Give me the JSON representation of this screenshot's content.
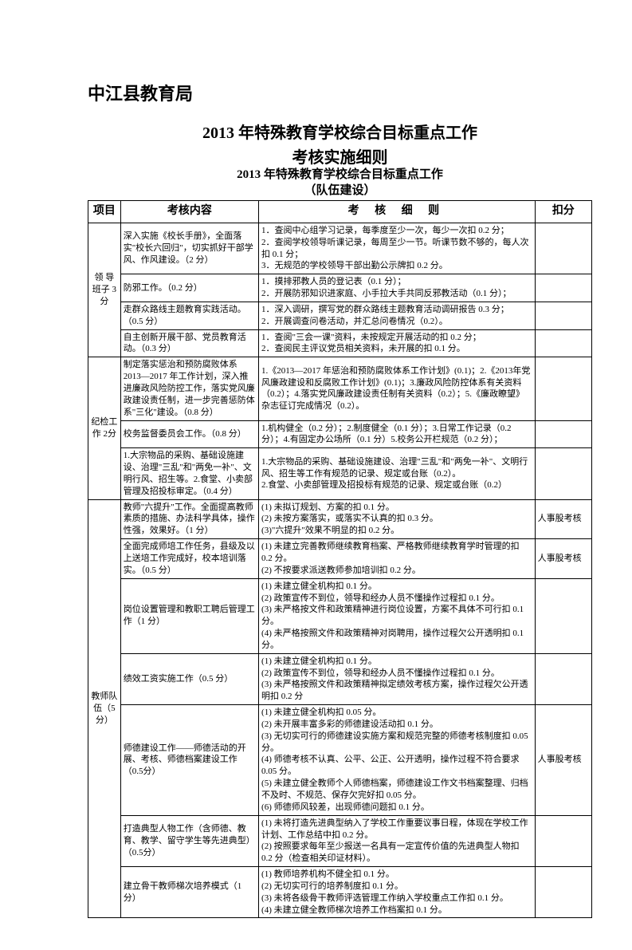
{
  "org_title": "中江县教育局",
  "doc_title_1": "2013 年特殊教育学校综合目标重点工作",
  "doc_title_2": "考核实施细则",
  "sub_title_1": "2013 年特殊教育学校综合目标重点工作",
  "sub_title_2": "（队伍建设）",
  "headers": {
    "project": "项目",
    "content": "考核内容",
    "rule": "考 核 细 则",
    "deduct": "扣分"
  },
  "sections": [
    {
      "project": "领 导班子 3分",
      "rows": [
        {
          "content": "深入实施《校长手册》，全面落实\"校长六回归\"，切实抓好干部学风、作风建设。（2 分）",
          "rule": "1．查阅中心组学习记录，每季度至少一次，每少一次扣 0.2 分；\n2．查阅学校领导听课记录，每周至少一节。听课节数不够的，每人次扣 0.1 分；\n3．无规范的学校领导干部出勤公示牌扣 0.2 分。",
          "deduct": ""
        },
        {
          "content": "防邪工作。（0.2 分）",
          "rule": "1．摸排邪教人员的登记表（0.1 分）；\n2．开展防邪知识进家庭、小手拉大手共同反邪教活动（0.1 分）；",
          "deduct": ""
        },
        {
          "content": "走群众路线主题教育实践活动。（0.5 分）",
          "rule": "1．深入调研，撰写党的群众路线主题教育活动调研报告 0.3 分；\n2．开展调查问卷活动，并汇总问卷情况（0.2）。",
          "deduct": ""
        },
        {
          "content": "自主创新开展干部、党员教育活动。（0.3 分）",
          "rule": "1．查阅\"三会一课\"资料，未按规定开展活动的扣 0.2 分；\n2．查阅民主评议党员相关资料，未开展的扣 0.1 分。",
          "deduct": ""
        }
      ]
    },
    {
      "project": "纪检工作 2分",
      "rows": [
        {
          "content": "制定落实惩治和预防腐败体系 2013—2017 年工作计划，深入推进廉政风险防控工作，落实党风廉政建设责任制，进一步完善惩防体系\"三化\"建设。（0.8 分）",
          "rule": "1.《2013—2017 年惩治和预防腐败体系工作计划》(0.1)；2.《2013年党风廉政建设和反腐败工作计划》(0.1)；3.廉政风险防控体系有关资料（0.2）；4.落实党风廉政建设责任制有关资料（0.2）；5.《廉政瞭望》杂志征订完成情况（0.2）。",
          "deduct": ""
        },
        {
          "content": "校务监督委员会工作。（0.8 分）",
          "rule": "1.机构健全（0.2 分）；2.制度健全（0.1 分）；3.日常工作记录（0.2分）；4.有固定办公场所（0.1 分）5.校务公开栏规范（0.2 分）；",
          "deduct": ""
        },
        {
          "content": "1.大宗物品的采购、基础设施建设、治理\"三乱\"和\"两免一补\"、文明行风、招生等。2.食堂、小卖部管理及招投标审定。（0.4 分）",
          "rule": "1.大宗物品的采购、基础设施建设、治理\"三乱\"和\"两免一补\"、文明行风、招生等工作有规范的记录、规定或台账（0.2）。\n2.食堂、小卖部管理及招投标有规范的记录、规定或台账（0.2）",
          "deduct": ""
        }
      ]
    },
    {
      "project": "教师队伍（5分）",
      "rows": [
        {
          "content": "教师\"六提升\"工作。全面提高教师素质的措施、办法科学具体，操作性强，效果好。（1 分）",
          "rule": "(1) 未拟订规划、方案的扣 0.1 分。\n(2) 未按方案落实，或落实不认真的扣 0.3 分。\n(3)\"六提升\"效果不明显的扣 0.2 分。",
          "deduct": "人事股考核"
        },
        {
          "content": "全面完成师培工作任务，县级及以上送培工作完成好，校本培训落实。（0.5 分）",
          "rule": "(1) 未建立完善教师继续教育档案、严格教师继续教育学时管理的扣 0.2 分。\n(2) 不按要求派送教师参加培训扣 0.2 分。",
          "deduct": "人事股考核"
        },
        {
          "content": "岗位设置管理和教职工聘后管理工作（1 分）",
          "rule": "(1) 未建立健全机构扣 0.1 分。\n(2) 政策宣传不到位，领导和经办人员不懂操作过程扣 0.1 分。\n(3) 未严格按文件和政策精神进行岗位设置，方案不具体不可行扣 0.1 分。\n(4) 未严格按照文件和政策精神对岗聘用，操作过程欠公开透明扣 0.1 分。",
          "deduct": ""
        },
        {
          "content": "绩效工资实施工作（0.5 分）",
          "rule": "(1) 未建立健全机构扣 0.1 分。\n(2) 政策宣传不到位，领导和经办人员不懂操作过程扣 0.1 分。\n(3) 未严格按照文件和政策精神拟定绩效考核方案，操作过程欠公开透明扣 0.2 分",
          "deduct": ""
        },
        {
          "content": "师德建设工作——师德活动的开展、考核、师德档案建设工作（0.5分）",
          "rule": "(1) 未建立健全机构扣 0.05 分。\n(2) 未开展丰富多彩的师德建设活动扣 0.1 分。\n(3) 无切实可行的师德建设实施方案和规范完整的师德考核制度扣 0.05 分。\n(4) 师德考核不认真、公平、公正、公开透明，操作过程不符合要求 0.05 分。\n(5) 未建立健全教师个人师德档案，师德建设工作文书档案整理、归档不及时、不规范、保存欠完好扣 0.05 分。\n(6) 师德师风较差，出现师德问题扣 0.1 分。",
          "deduct": "人事股考核"
        },
        {
          "content": "打造典型人物工作（含师德、教育、教学、留守学生等先进典型）（0.5分）",
          "rule": "(1) 未将打造先进典型纳入了学校工作重要议事日程，体现在学校工作计划、工作总结中扣 0.2 分。\n(2) 按照要求每年至少报送一名具有一定宣传价值的先进典型人物扣 0.2 分（检查相关印证材料）。",
          "deduct": ""
        },
        {
          "content": "建立骨干教师梯次培养模式（1 分）",
          "rule": "(1) 教师培养机构不健全扣 0.1 分。\n(2) 无切实可行的培养制度扣 0.1 分。\n(3) 未将各级骨干教师评选管理工作纳入学校重点工作扣 0.1 分。\n(4) 未建立健全教师梯次培养工作档案扣 0.1 分。",
          "deduct": ""
        }
      ]
    }
  ]
}
